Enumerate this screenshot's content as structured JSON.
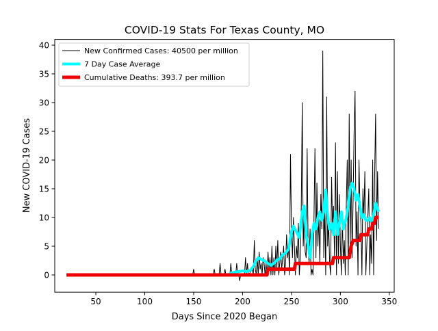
{
  "chart_data": {
    "type": "line",
    "title": "COVID-19 Stats For Texas County, MO",
    "xlabel": "Days Since 2020 Began",
    "ylabel": "New COVID-19 Cases",
    "xlim": [
      8,
      355
    ],
    "ylim": [
      -3,
      41
    ],
    "xticks": [
      50,
      100,
      150,
      200,
      250,
      300,
      350
    ],
    "yticks": [
      0,
      5,
      10,
      15,
      20,
      25,
      30,
      35,
      40
    ],
    "legend_position": "top-left",
    "series": [
      {
        "name": "New Confirmed Cases: 40500 per million",
        "color": "#000000",
        "width": 1,
        "points": [
          [
            20,
            0
          ],
          [
            149,
            0
          ],
          [
            150,
            1
          ],
          [
            151,
            0
          ],
          [
            160,
            0
          ],
          [
            165,
            0
          ],
          [
            170,
            0
          ],
          [
            171,
            1
          ],
          [
            172,
            0
          ],
          [
            176,
            0
          ],
          [
            177,
            2
          ],
          [
            178,
            0
          ],
          [
            181,
            0
          ],
          [
            182,
            1
          ],
          [
            183,
            0
          ],
          [
            187,
            0
          ],
          [
            188,
            2
          ],
          [
            189,
            0
          ],
          [
            193,
            0
          ],
          [
            194,
            2
          ],
          [
            195,
            0
          ],
          [
            196,
            0
          ],
          [
            197,
            -1
          ],
          [
            198,
            0
          ],
          [
            202,
            0
          ],
          [
            203,
            3
          ],
          [
            204,
            0
          ],
          [
            205,
            2
          ],
          [
            206,
            0
          ],
          [
            210,
            1
          ],
          [
            211,
            0
          ],
          [
            212,
            6
          ],
          [
            213,
            1
          ],
          [
            214,
            0
          ],
          [
            215,
            3
          ],
          [
            216,
            0
          ],
          [
            217,
            4
          ],
          [
            218,
            1
          ],
          [
            219,
            2
          ],
          [
            220,
            0
          ],
          [
            221,
            3
          ],
          [
            222,
            2
          ],
          [
            223,
            0
          ],
          [
            224,
            2
          ],
          [
            225,
            0
          ],
          [
            226,
            4
          ],
          [
            227,
            1
          ],
          [
            228,
            3
          ],
          [
            229,
            0
          ],
          [
            230,
            5
          ],
          [
            231,
            0
          ],
          [
            232,
            3
          ],
          [
            233,
            0
          ],
          [
            234,
            5
          ],
          [
            235,
            1
          ],
          [
            236,
            6
          ],
          [
            237,
            0
          ],
          [
            238,
            2
          ],
          [
            239,
            4
          ],
          [
            240,
            1
          ],
          [
            241,
            3
          ],
          [
            242,
            5
          ],
          [
            243,
            0
          ],
          [
            244,
            2
          ],
          [
            245,
            7
          ],
          [
            246,
            3
          ],
          [
            247,
            5
          ],
          [
            248,
            0
          ],
          [
            249,
            21
          ],
          [
            250,
            8
          ],
          [
            251,
            3
          ],
          [
            252,
            10
          ],
          [
            253,
            5
          ],
          [
            254,
            0
          ],
          [
            255,
            5
          ],
          [
            256,
            3
          ],
          [
            257,
            9
          ],
          [
            258,
            0
          ],
          [
            259,
            3
          ],
          [
            260,
            12
          ],
          [
            261,
            30
          ],
          [
            262,
            5
          ],
          [
            263,
            10
          ],
          [
            264,
            4
          ],
          [
            265,
            3
          ],
          [
            266,
            22
          ],
          [
            267,
            5
          ],
          [
            268,
            2
          ],
          [
            269,
            8
          ],
          [
            270,
            0
          ],
          [
            271,
            1
          ],
          [
            272,
            0
          ],
          [
            273,
            10
          ],
          [
            274,
            22
          ],
          [
            275,
            3
          ],
          [
            276,
            16
          ],
          [
            277,
            5
          ],
          [
            278,
            10
          ],
          [
            279,
            2
          ],
          [
            280,
            14
          ],
          [
            281,
            8
          ],
          [
            282,
            39
          ],
          [
            283,
            3
          ],
          [
            284,
            12
          ],
          [
            285,
            0
          ],
          [
            286,
            31
          ],
          [
            287,
            5
          ],
          [
            288,
            9
          ],
          [
            289,
            2
          ],
          [
            290,
            0
          ],
          [
            291,
            17
          ],
          [
            292,
            8
          ],
          [
            293,
            12
          ],
          [
            294,
            3
          ],
          [
            295,
            23
          ],
          [
            296,
            0
          ],
          [
            297,
            18
          ],
          [
            298,
            2
          ],
          [
            299,
            14
          ],
          [
            300,
            5
          ],
          [
            301,
            0
          ],
          [
            302,
            10
          ],
          [
            303,
            2
          ],
          [
            304,
            6
          ],
          [
            305,
            0
          ],
          [
            306,
            12
          ],
          [
            307,
            20
          ],
          [
            308,
            0
          ],
          [
            309,
            28
          ],
          [
            310,
            5
          ],
          [
            311,
            20
          ],
          [
            312,
            3
          ],
          [
            313,
            13
          ],
          [
            314,
            25
          ],
          [
            315,
            32
          ],
          [
            316,
            5
          ],
          [
            317,
            11
          ],
          [
            318,
            0
          ],
          [
            319,
            20
          ],
          [
            320,
            12
          ],
          [
            321,
            9
          ],
          [
            322,
            0
          ],
          [
            323,
            15
          ],
          [
            324,
            10
          ],
          [
            325,
            18
          ],
          [
            326,
            0
          ],
          [
            327,
            5
          ],
          [
            328,
            10
          ],
          [
            329,
            15
          ],
          [
            330,
            0
          ],
          [
            331,
            7
          ],
          [
            332,
            2
          ],
          [
            333,
            20
          ],
          [
            334,
            0
          ],
          [
            335,
            17
          ],
          [
            336,
            28
          ],
          [
            337,
            6
          ],
          [
            338,
            18
          ],
          [
            339,
            8
          ]
        ]
      },
      {
        "name": "7 Day Case Average",
        "color": "#00ffff",
        "width": 4,
        "points": [
          [
            20,
            0
          ],
          [
            185,
            0
          ],
          [
            188,
            0.3
          ],
          [
            192,
            0.5
          ],
          [
            196,
            0.6
          ],
          [
            200,
            0.7
          ],
          [
            204,
            0.6
          ],
          [
            208,
            0.8
          ],
          [
            211,
            1.5
          ],
          [
            214,
            2.5
          ],
          [
            216,
            3
          ],
          [
            219,
            2.7
          ],
          [
            222,
            2.5
          ],
          [
            226,
            2
          ],
          [
            229,
            1.7
          ],
          [
            232,
            2
          ],
          [
            235,
            2.6
          ],
          [
            238,
            2.8
          ],
          [
            241,
            3.5
          ],
          [
            244,
            3.8
          ],
          [
            247,
            4.5
          ],
          [
            250,
            7.5
          ],
          [
            252,
            8.5
          ],
          [
            255,
            7.5
          ],
          [
            258,
            6.5
          ],
          [
            261,
            11
          ],
          [
            263,
            12
          ],
          [
            265,
            7
          ],
          [
            267,
            5
          ],
          [
            269,
            3
          ],
          [
            271,
            7
          ],
          [
            273,
            9
          ],
          [
            275,
            8
          ],
          [
            277,
            10
          ],
          [
            279,
            11
          ],
          [
            281,
            9.5
          ],
          [
            283,
            11
          ],
          [
            285,
            14.8
          ],
          [
            287,
            10
          ],
          [
            289,
            8
          ],
          [
            291,
            9
          ],
          [
            293,
            7
          ],
          [
            295,
            11
          ],
          [
            297,
            7
          ],
          [
            299,
            9
          ],
          [
            301,
            11
          ],
          [
            303,
            8
          ],
          [
            306,
            10
          ],
          [
            308,
            12
          ],
          [
            310,
            15
          ],
          [
            312,
            16
          ],
          [
            314,
            15
          ],
          [
            316,
            13
          ],
          [
            318,
            14
          ],
          [
            320,
            12
          ],
          [
            322,
            10
          ],
          [
            324,
            10.5
          ],
          [
            326,
            9.5
          ],
          [
            328,
            9.5
          ],
          [
            330,
            10
          ],
          [
            332,
            9
          ],
          [
            334,
            10.5
          ],
          [
            336,
            12.5
          ],
          [
            338,
            11.5
          ],
          [
            339,
            11
          ]
        ]
      },
      {
        "name": "Cumulative Deaths: 393.7 per million",
        "color": "#ee0000",
        "width": 5,
        "points": [
          [
            20,
            0
          ],
          [
            225,
            0
          ],
          [
            226,
            1
          ],
          [
            253,
            1
          ],
          [
            254,
            2
          ],
          [
            292,
            2
          ],
          [
            293,
            3
          ],
          [
            309,
            3
          ],
          [
            310,
            4
          ],
          [
            311,
            5
          ],
          [
            313,
            6
          ],
          [
            320,
            6
          ],
          [
            321,
            7
          ],
          [
            328,
            7
          ],
          [
            329,
            8
          ],
          [
            332,
            8
          ],
          [
            333,
            9
          ],
          [
            335,
            9
          ],
          [
            336,
            10
          ],
          [
            339,
            10
          ]
        ]
      }
    ]
  }
}
